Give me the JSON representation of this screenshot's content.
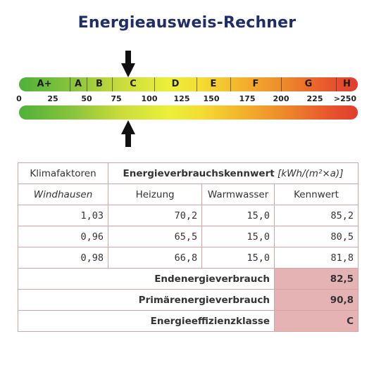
{
  "title": "Energieausweis-Rechner",
  "scale": {
    "classes": [
      "A+",
      "A",
      "B",
      "C",
      "D",
      "E",
      "F",
      "G",
      "H"
    ],
    "ticks": [
      "0",
      "25",
      "50",
      "75",
      "100",
      "125",
      "150",
      "175",
      "200",
      "225",
      ">250"
    ],
    "indicator_value": 82.5,
    "indicator_class": "C"
  },
  "table": {
    "header1": {
      "col1": "Klimafaktoren",
      "col2": "Energieverbrauchskennwert",
      "unit": "[kWh/(m²×a)]"
    },
    "header2": {
      "location": "Windhausen",
      "heizung": "Heizung",
      "warmwasser": "Warmwasser",
      "kennwert": "Kennwert"
    },
    "rows": [
      {
        "klima": "1,03",
        "heizung": "70,2",
        "warmwasser": "15,0",
        "kennwert": "85,2"
      },
      {
        "klima": "0,96",
        "heizung": "65,5",
        "warmwasser": "15,0",
        "kennwert": "80,5"
      },
      {
        "klima": "0,98",
        "heizung": "66,8",
        "warmwasser": "15,0",
        "kennwert": "81,8"
      }
    ],
    "summary": [
      {
        "label": "Endenergieverbrauch",
        "value": "82,5"
      },
      {
        "label": "Primärenergieverbrauch",
        "value": "90,8"
      },
      {
        "label": "Energieeffizienzklasse",
        "value": "C"
      }
    ]
  },
  "colors": {
    "title": "#1f2d6b",
    "border": "#d9a3a3",
    "highlight": "#e6b3b4",
    "scale_start": "#4fb13a",
    "scale_end": "#e03c2f"
  }
}
